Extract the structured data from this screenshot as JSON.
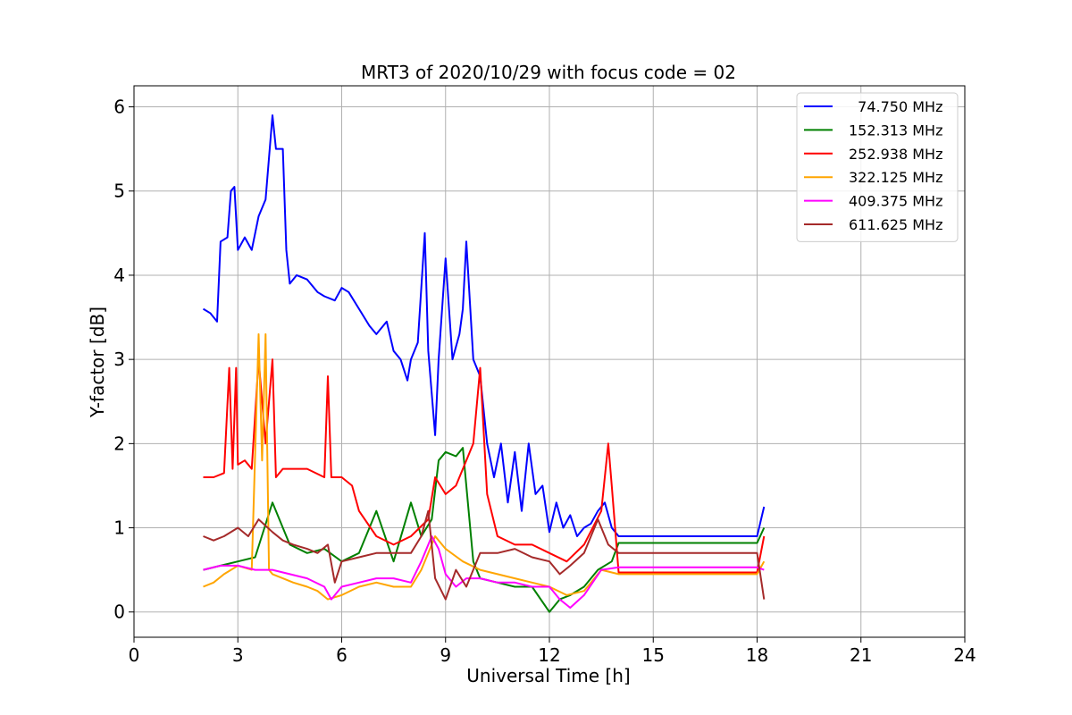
{
  "chart_data": {
    "type": "line",
    "title": "MRT3 of 2020/10/29 with focus code = 02",
    "xlabel": "Universal Time [h]",
    "ylabel": "Y-factor [dB]",
    "xlim": [
      0,
      24
    ],
    "ylim": [
      -0.3,
      6.25
    ],
    "xticks": [
      0,
      3,
      6,
      9,
      12,
      15,
      18,
      21,
      24
    ],
    "yticks": [
      0,
      1,
      2,
      3,
      4,
      5,
      6
    ],
    "grid": true,
    "legend_position": "top-right",
    "series": [
      {
        "name": "  74.750 MHz",
        "color": "#0000ff",
        "x": [
          2.0,
          2.2,
          2.4,
          2.5,
          2.7,
          2.8,
          2.9,
          3.0,
          3.2,
          3.4,
          3.6,
          3.8,
          4.0,
          4.1,
          4.3,
          4.4,
          4.5,
          4.7,
          5.0,
          5.3,
          5.5,
          5.8,
          6.0,
          6.2,
          6.5,
          6.8,
          7.0,
          7.3,
          7.5,
          7.7,
          7.9,
          8.0,
          8.2,
          8.4,
          8.5,
          8.7,
          8.8,
          9.0,
          9.2,
          9.4,
          9.5,
          9.6,
          9.8,
          10.0,
          10.2,
          10.4,
          10.6,
          10.8,
          11.0,
          11.2,
          11.4,
          11.6,
          11.8,
          12.0,
          12.2,
          12.4,
          12.6,
          12.8,
          13.0,
          13.2,
          13.4,
          13.6,
          13.8,
          14.0,
          18.0,
          18.2
        ],
        "y": [
          3.6,
          3.55,
          3.45,
          4.4,
          4.45,
          5.0,
          5.05,
          4.3,
          4.45,
          4.3,
          4.7,
          4.9,
          5.9,
          5.5,
          5.5,
          4.3,
          3.9,
          4.0,
          3.95,
          3.8,
          3.75,
          3.7,
          3.85,
          3.8,
          3.6,
          3.4,
          3.3,
          3.45,
          3.1,
          3.0,
          2.75,
          3.0,
          3.2,
          4.5,
          3.1,
          2.1,
          3.0,
          4.2,
          3.0,
          3.3,
          3.6,
          4.4,
          3.0,
          2.8,
          2.0,
          1.6,
          2.0,
          1.3,
          1.9,
          1.2,
          2.0,
          1.4,
          1.5,
          0.95,
          1.3,
          1.0,
          1.15,
          0.9,
          1.0,
          1.05,
          1.2,
          1.3,
          1.0,
          0.9,
          0.9,
          1.25
        ]
      },
      {
        "name": "152.313 MHz",
        "color": "#008000",
        "x": [
          2.0,
          2.5,
          3.0,
          3.5,
          4.0,
          4.5,
          5.0,
          5.5,
          6.0,
          6.5,
          7.0,
          7.5,
          8.0,
          8.3,
          8.6,
          8.8,
          9.0,
          9.3,
          9.5,
          9.8,
          10.0,
          10.5,
          11.0,
          11.5,
          12.0,
          12.3,
          12.6,
          13.0,
          13.4,
          13.8,
          14.0,
          18.0,
          18.2
        ],
        "y": [
          0.5,
          0.55,
          0.6,
          0.65,
          1.3,
          0.8,
          0.7,
          0.75,
          0.6,
          0.7,
          1.2,
          0.6,
          1.3,
          0.9,
          1.1,
          1.8,
          1.9,
          1.85,
          1.95,
          0.6,
          0.4,
          0.35,
          0.3,
          0.3,
          0.0,
          0.15,
          0.2,
          0.3,
          0.5,
          0.6,
          0.82,
          0.82,
          1.0
        ]
      },
      {
        "name": "252.938 MHz",
        "color": "#ff0000",
        "x": [
          2.0,
          2.3,
          2.6,
          2.75,
          2.85,
          2.95,
          3.0,
          3.2,
          3.4,
          3.6,
          3.8,
          4.0,
          4.1,
          4.3,
          4.5,
          5.0,
          5.5,
          5.6,
          5.7,
          6.0,
          6.3,
          6.5,
          7.0,
          7.5,
          8.0,
          8.5,
          8.7,
          9.0,
          9.3,
          9.6,
          9.8,
          10.0,
          10.2,
          10.5,
          11.0,
          11.5,
          12.0,
          12.5,
          13.0,
          13.5,
          13.7,
          13.8,
          14.0,
          18.0,
          18.2
        ],
        "y": [
          1.6,
          1.6,
          1.65,
          2.9,
          1.7,
          2.9,
          1.75,
          1.8,
          1.7,
          3.0,
          2.0,
          3.0,
          1.6,
          1.7,
          1.7,
          1.7,
          1.6,
          2.8,
          1.6,
          1.6,
          1.5,
          1.2,
          0.9,
          0.8,
          0.9,
          1.1,
          1.6,
          1.4,
          1.5,
          1.8,
          2.0,
          2.9,
          1.4,
          0.9,
          0.8,
          0.8,
          0.7,
          0.6,
          0.8,
          1.2,
          2.0,
          1.5,
          0.47,
          0.47,
          0.9
        ]
      },
      {
        "name": "322.125 MHz",
        "color": "#ffa500",
        "x": [
          2.0,
          2.3,
          2.6,
          3.0,
          3.4,
          3.6,
          3.7,
          3.8,
          3.9,
          4.0,
          4.3,
          4.6,
          5.0,
          5.3,
          5.6,
          6.0,
          6.5,
          7.0,
          7.5,
          8.0,
          8.3,
          8.5,
          8.7,
          9.0,
          9.5,
          10.0,
          10.5,
          11.0,
          11.5,
          12.0,
          12.5,
          13.0,
          13.5,
          14.0,
          18.0,
          18.2
        ],
        "y": [
          0.3,
          0.35,
          0.45,
          0.55,
          0.5,
          3.3,
          1.8,
          3.3,
          0.5,
          0.45,
          0.4,
          0.35,
          0.3,
          0.25,
          0.15,
          0.2,
          0.3,
          0.35,
          0.3,
          0.3,
          0.5,
          0.7,
          0.9,
          0.75,
          0.6,
          0.5,
          0.45,
          0.4,
          0.35,
          0.3,
          0.2,
          0.25,
          0.5,
          0.45,
          0.45,
          0.6
        ]
      },
      {
        "name": "409.375 MHz",
        "color": "#ff00ff",
        "x": [
          2.0,
          2.5,
          3.0,
          3.5,
          4.0,
          4.5,
          5.0,
          5.5,
          5.7,
          6.0,
          6.5,
          7.0,
          7.5,
          8.0,
          8.3,
          8.6,
          8.8,
          9.0,
          9.3,
          9.6,
          10.0,
          10.5,
          11.0,
          11.5,
          12.0,
          12.3,
          12.6,
          13.0,
          13.5,
          14.0,
          18.0,
          18.2
        ],
        "y": [
          0.5,
          0.55,
          0.55,
          0.5,
          0.5,
          0.45,
          0.4,
          0.3,
          0.15,
          0.3,
          0.35,
          0.4,
          0.4,
          0.35,
          0.6,
          0.9,
          0.75,
          0.45,
          0.3,
          0.4,
          0.4,
          0.35,
          0.35,
          0.3,
          0.3,
          0.15,
          0.05,
          0.2,
          0.5,
          0.53,
          0.53,
          0.5
        ]
      },
      {
        "name": "611.625 MHz",
        "color": "#a52a2a",
        "x": [
          2.0,
          2.3,
          2.6,
          3.0,
          3.3,
          3.6,
          4.0,
          4.3,
          4.6,
          5.0,
          5.3,
          5.6,
          5.8,
          6.0,
          6.5,
          7.0,
          7.5,
          8.0,
          8.3,
          8.5,
          8.7,
          9.0,
          9.3,
          9.6,
          10.0,
          10.5,
          11.0,
          11.5,
          12.0,
          12.3,
          12.6,
          13.0,
          13.4,
          13.7,
          14.0,
          18.0,
          18.2
        ],
        "y": [
          0.9,
          0.85,
          0.9,
          1.0,
          0.9,
          1.1,
          0.95,
          0.85,
          0.8,
          0.75,
          0.7,
          0.8,
          0.35,
          0.6,
          0.65,
          0.7,
          0.7,
          0.7,
          0.9,
          1.2,
          0.4,
          0.15,
          0.5,
          0.3,
          0.7,
          0.7,
          0.75,
          0.65,
          0.6,
          0.45,
          0.55,
          0.7,
          1.1,
          0.8,
          0.7,
          0.7,
          0.15
        ]
      }
    ]
  }
}
